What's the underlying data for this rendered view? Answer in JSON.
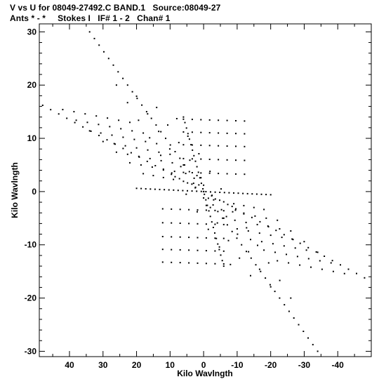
{
  "chart_data": {
    "type": "scatter",
    "title": "V vs U for 08049-27492.C BAND.1   Source:08049-27",
    "subtitle": "Ants * - *     Stokes I   IF# 1 - 2   Chan# 1",
    "xlabel": "Kilo Wavlngth",
    "ylabel": "Kilo Wavlngth",
    "xlim": [
      49,
      -50
    ],
    "ylim": [
      -31,
      31.5
    ],
    "x_inverted": true,
    "xticks": [
      40,
      30,
      20,
      10,
      0,
      -10,
      -20,
      -30,
      -40
    ],
    "yticks": [
      30,
      20,
      10,
      0,
      -10,
      -20,
      -30
    ],
    "xtick_labels": [
      "40",
      "30",
      "20",
      "10",
      "0",
      "-10",
      "-20",
      "-30",
      "-40"
    ],
    "ytick_labels": [
      "30",
      "20",
      "10",
      "0",
      "-10",
      "-20",
      "-30"
    ],
    "grid": false,
    "marker_color": "#000000",
    "x": [],
    "y": [],
    "point_groups": [
      {
        "description": "upper diagonal baseline track",
        "x_range": [
          34,
          0
        ],
        "y_range": [
          30,
          0
        ],
        "n": 25
      },
      {
        "description": "lower diagonal baseline track",
        "x_range": [
          0,
          -34
        ],
        "y_range": [
          0,
          -30
        ],
        "n": 25
      },
      {
        "description": "long shallow track",
        "x_range": [
          48,
          -48
        ],
        "y_range": [
          16.2,
          -16.2
        ],
        "n": 41
      },
      {
        "description": "nearly horizontal track",
        "x_range": [
          20,
          -20
        ],
        "y_range": [
          0.6,
          -0.6
        ],
        "n": 30
      },
      {
        "description": "steep track",
        "x_range": [
          6,
          -6
        ],
        "y_range": [
          14,
          -14
        ],
        "n": 28
      },
      {
        "description": "upper-left row grid",
        "rows_v_sub_row": [
          11,
          9,
          7,
          5,
          3,
          1
        ],
        "x_start": [
          42,
          37,
          32,
          27,
          22,
          17
        ],
        "x_end_offset": 20
      },
      {
        "description": "lower-right row grid",
        "rows_v_sub_row": [
          -1,
          -3,
          -5,
          -7,
          -9,
          -11
        ],
        "x_start": [
          -42,
          -37,
          -32,
          -27,
          -22,
          -17
        ],
        "x_end_offset": 20
      },
      {
        "description": "upper-middle rows",
        "rows_v": [
          13.5,
          11,
          8.5,
          6,
          3.5
        ],
        "x_range": [
          6,
          -13
        ]
      },
      {
        "description": "lower-middle rows",
        "rows_v": [
          -13.5,
          -11,
          -8.5,
          -6,
          -3.5
        ],
        "x_range": [
          -6,
          13
        ]
      }
    ]
  }
}
